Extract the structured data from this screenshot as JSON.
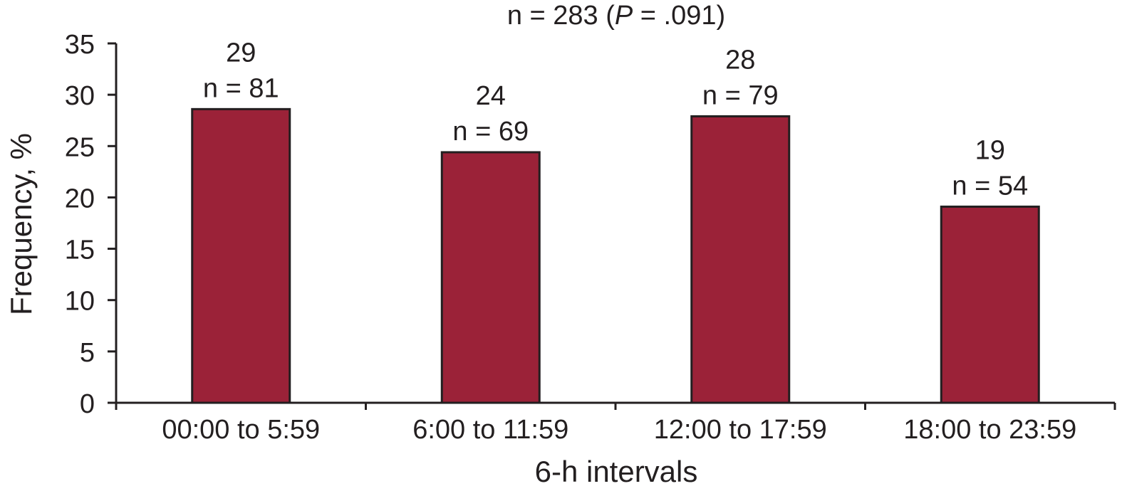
{
  "chart_data": {
    "type": "bar",
    "title": {
      "prefix": "n = 283 (",
      "italic": "P",
      "suffix": " = .091)"
    },
    "xlabel": "6-h intervals",
    "ylabel": "Frequency, %",
    "ylim": [
      0,
      35
    ],
    "yticks": [
      0,
      5,
      10,
      15,
      20,
      25,
      30,
      35
    ],
    "categories": [
      "00:00 to 5:59",
      "6:00 to 11:59",
      "12:00 to 17:59",
      "18:00 to 23:59"
    ],
    "values": [
      28.6,
      24.4,
      27.9,
      19.1
    ],
    "value_labels": [
      "29",
      "24",
      "28",
      "19"
    ],
    "n_labels": [
      "n = 81",
      "n = 69",
      "n = 79",
      "n = 54"
    ],
    "bar_color": "#9b2238",
    "grid": false,
    "legend": "none"
  }
}
